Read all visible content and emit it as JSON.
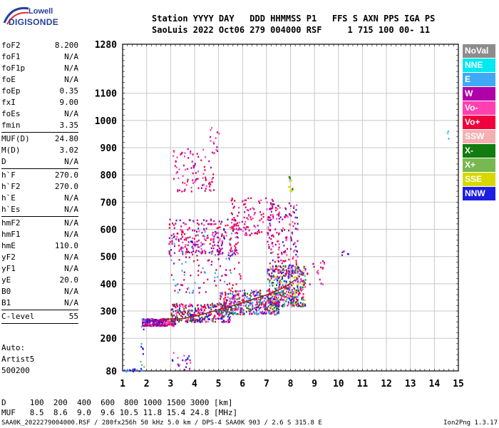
{
  "logo": {
    "line1": "Lowell",
    "line2": "DIGISONDE"
  },
  "header": {
    "line1": "Station YYYY DAY   DDD HHMMSS P1   FFS S AXN PPS IGA PS",
    "line2": "SaoLuis 2022 Oct06 279 004000 RSF     1 715 100 00- 11"
  },
  "params": {
    "group1": [
      {
        "k": "foF2",
        "v": "8.200"
      },
      {
        "k": "foF1",
        "v": "N/A"
      },
      {
        "k": "foF1p",
        "v": "N/A"
      },
      {
        "k": "foE",
        "v": "N/A"
      },
      {
        "k": "foEp",
        "v": "0.35"
      },
      {
        "k": "fxI",
        "v": "9.00"
      },
      {
        "k": "foEs",
        "v": "N/A"
      },
      {
        "k": "fmin",
        "v": "3.35"
      }
    ],
    "group2": [
      {
        "k": "MUF(D)",
        "v": "24.80"
      },
      {
        "k": "M(D)",
        "v": "3.02"
      },
      {
        "k": "D",
        "v": "N/A"
      }
    ],
    "group3": [
      {
        "k": "h`F",
        "v": "270.0"
      },
      {
        "k": "h`F2",
        "v": "270.0"
      },
      {
        "k": "h`E",
        "v": "N/A"
      },
      {
        "k": "h`Es",
        "v": "N/A"
      }
    ],
    "group4": [
      {
        "k": "hmF2",
        "v": "N/A"
      },
      {
        "k": "hmF1",
        "v": "N/A"
      },
      {
        "k": "hmE",
        "v": "110.0"
      },
      {
        "k": "yF2",
        "v": "N/A"
      },
      {
        "k": "yF1",
        "v": "N/A"
      },
      {
        "k": "yE",
        "v": "20.0"
      },
      {
        "k": "B0",
        "v": "N/A"
      },
      {
        "k": "B1",
        "v": "N/A"
      }
    ],
    "clevel": {
      "k": "C-level",
      "v": "55"
    }
  },
  "auto": {
    "l1": "Auto:",
    "l2": "Artist5",
    "l3": "500200"
  },
  "legend": [
    {
      "label": "NoVal",
      "color": "#8c8c8c"
    },
    {
      "label": "NNE",
      "color": "#00e8f0"
    },
    {
      "label": "E",
      "color": "#3fa9f5"
    },
    {
      "label": "W",
      "color": "#b000a8"
    },
    {
      "label": "Vo-",
      "color": "#ff40b0"
    },
    {
      "label": "Vo+",
      "color": "#f0003c"
    },
    {
      "label": "SSW",
      "color": "#f4b0b0"
    },
    {
      "label": "X-",
      "color": "#107c10"
    },
    {
      "label": "X+",
      "color": "#78b850"
    },
    {
      "label": "SSE",
      "color": "#d8d800"
    },
    {
      "label": "NNW",
      "color": "#1e1ee0"
    }
  ],
  "bottom": {
    "line1": "D     100  200  400  600  800 1000 1500 3000 [km]",
    "line2": "MUF   8.5  8.6  9.0  9.6 10.5 11.8 15.4 24.8 [MHz]"
  },
  "footer": {
    "left": "SAA0K_2022279004000.RSF / 280fx256h 50 kHz 5.0 km / DPS-4 SAA0K 903 / 2.6 S 315.8 E",
    "right": "Ion2Png 1.3.17"
  },
  "chart_data": {
    "type": "scatter",
    "xlim": [
      1,
      15
    ],
    "ylim": [
      80,
      1280
    ],
    "x_ticks": [
      1,
      2,
      3,
      4,
      5,
      6,
      7,
      8,
      9,
      10,
      11,
      12,
      13,
      14,
      15
    ],
    "y_ticks": [
      80,
      200,
      300,
      400,
      500,
      600,
      700,
      800,
      900,
      1000,
      1100,
      1280
    ],
    "grid": true,
    "trace": {
      "color": "#8a2a1a",
      "x": [
        2.7,
        3.5,
        4.2,
        5.0,
        5.8,
        6.5,
        7.2,
        7.8,
        8.2
      ],
      "y": [
        270,
        272,
        285,
        305,
        325,
        345,
        365,
        390,
        415
      ]
    },
    "clusters": [
      {
        "x0": 1.8,
        "x1": 3.2,
        "y0": 248,
        "y1": 275,
        "n": 260,
        "colors": [
          "#1e1ee0",
          "#b000a8",
          "#ff40b0",
          "#f0003c"
        ]
      },
      {
        "x0": 3.0,
        "x1": 5.5,
        "y0": 262,
        "y1": 330,
        "n": 320,
        "colors": [
          "#1e1ee0",
          "#f0003c",
          "#ff40b0",
          "#b000a8",
          "#107c10"
        ]
      },
      {
        "x0": 5.0,
        "x1": 7.5,
        "y0": 290,
        "y1": 380,
        "n": 420,
        "colors": [
          "#f0003c",
          "#ff40b0",
          "#b000a8",
          "#1e1ee0",
          "#107c10",
          "#3fa9f5"
        ]
      },
      {
        "x0": 7.0,
        "x1": 8.6,
        "y0": 320,
        "y1": 470,
        "n": 420,
        "colors": [
          "#f0003c",
          "#ff40b0",
          "#b000a8",
          "#3fa9f5",
          "#1e1ee0",
          "#d8d800",
          "#107c10"
        ]
      },
      {
        "x0": 7.0,
        "x1": 8.3,
        "y0": 440,
        "y1": 700,
        "n": 180,
        "colors": [
          "#f0003c",
          "#b000a8",
          "#ff40b0",
          "#1e1ee0"
        ]
      },
      {
        "x0": 2.9,
        "x1": 5.8,
        "y0": 505,
        "y1": 640,
        "n": 260,
        "colors": [
          "#b000a8",
          "#f0003c",
          "#ff40b0",
          "#1e1ee0"
        ]
      },
      {
        "x0": 5.5,
        "x1": 7.3,
        "y0": 580,
        "y1": 720,
        "n": 120,
        "colors": [
          "#b000a8",
          "#f0003c",
          "#ff40b0"
        ]
      },
      {
        "x0": 3.0,
        "x1": 5.9,
        "y0": 370,
        "y1": 600,
        "n": 120,
        "colors": [
          "#b000a8",
          "#f0003c",
          "#3fa9f5"
        ]
      },
      {
        "x0": 3.0,
        "x1": 4.8,
        "y0": 740,
        "y1": 900,
        "n": 90,
        "colors": [
          "#b000a8",
          "#ff40b0",
          "#f0003c"
        ]
      },
      {
        "x0": 4.6,
        "x1": 5.0,
        "y0": 880,
        "y1": 985,
        "n": 14,
        "colors": [
          "#b000a8",
          "#ff40b0"
        ]
      },
      {
        "x0": 7.9,
        "x1": 8.1,
        "y0": 740,
        "y1": 800,
        "n": 14,
        "colors": [
          "#d8d800",
          "#107c10",
          "#f4b0b0"
        ]
      },
      {
        "x0": 3.0,
        "x1": 3.8,
        "y0": 85,
        "y1": 150,
        "n": 20,
        "colors": [
          "#b000a8",
          "#ff40b0",
          "#1e1ee0"
        ]
      },
      {
        "x0": 1.0,
        "x1": 1.9,
        "y0": 80,
        "y1": 90,
        "n": 14,
        "colors": [
          "#1e1ee0",
          "#3fa9f5"
        ]
      },
      {
        "x0": 1.7,
        "x1": 1.9,
        "y0": 90,
        "y1": 300,
        "n": 14,
        "colors": [
          "#1e1ee0",
          "#3fa9f5",
          "#78b850"
        ]
      },
      {
        "x0": 8.5,
        "x1": 9.4,
        "y0": 400,
        "y1": 500,
        "n": 24,
        "colors": [
          "#f0003c",
          "#b000a8",
          "#ff40b0"
        ]
      },
      {
        "x0": 10.1,
        "x1": 10.4,
        "y0": 505,
        "y1": 525,
        "n": 5,
        "colors": [
          "#b000a8",
          "#1e1ee0"
        ]
      },
      {
        "x0": 14.5,
        "x1": 14.6,
        "y0": 935,
        "y1": 970,
        "n": 3,
        "colors": [
          "#00e8f0",
          "#3fa9f5"
        ]
      }
    ]
  }
}
